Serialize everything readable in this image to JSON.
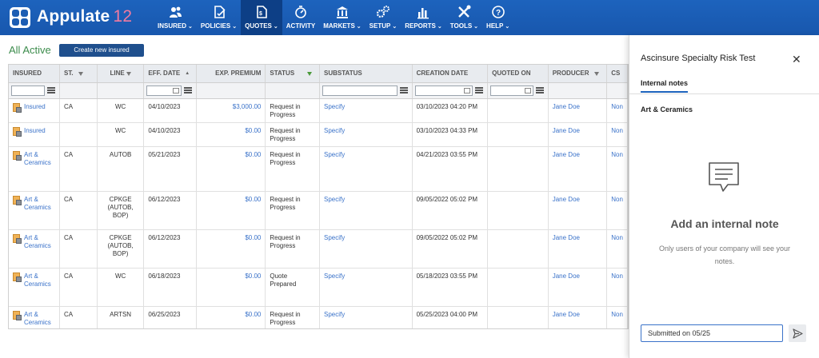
{
  "app": {
    "name": "Appulate",
    "version": "12"
  },
  "nav": [
    {
      "label": "INSURED",
      "icon": "users-icon",
      "dropdown": true,
      "active": false
    },
    {
      "label": "POLICIES",
      "icon": "policy-document-icon",
      "dropdown": true,
      "active": false
    },
    {
      "label": "QUOTES",
      "icon": "quote-document-icon",
      "dropdown": true,
      "active": true
    },
    {
      "label": "ACTIVITY",
      "icon": "activity-timer-icon",
      "dropdown": false,
      "active": false
    },
    {
      "label": "MARKETS",
      "icon": "bank-icon",
      "dropdown": true,
      "active": false
    },
    {
      "label": "SETUP",
      "icon": "gears-icon",
      "dropdown": true,
      "active": false
    },
    {
      "label": "REPORTS",
      "icon": "bar-chart-icon",
      "dropdown": true,
      "active": false
    },
    {
      "label": "TOOLS",
      "icon": "tools-icon",
      "dropdown": true,
      "active": false
    },
    {
      "label": "HELP",
      "icon": "help-icon",
      "dropdown": true,
      "active": false
    }
  ],
  "main": {
    "section_title": "All Active",
    "create_button": "Create new insured"
  },
  "table": {
    "columns": [
      "INSURED",
      "ST.",
      "LINE",
      "EFF. DATE",
      "EXP. PREMIUM",
      "STATUS",
      "SUBSTATUS",
      "CREATION DATE",
      "QUOTED ON",
      "PRODUCER",
      "CS"
    ],
    "rows": [
      {
        "insured": "Insured",
        "state": "CA",
        "line": "WC",
        "eff_date": "04/10/2023",
        "premium": "$3,000.00",
        "status": "Request in Progress",
        "substatus": "Specify",
        "created": "03/10/2023 04:20 PM",
        "quoted_on": "",
        "producer": "Jane Doe",
        "cs": "Non"
      },
      {
        "insured": "Insured",
        "state": "",
        "line": "WC",
        "eff_date": "04/10/2023",
        "premium": "$0.00",
        "status": "Request in Progress",
        "substatus": "Specify",
        "created": "03/10/2023 04:33 PM",
        "quoted_on": "",
        "producer": "Jane Doe",
        "cs": "Non"
      },
      {
        "insured": "Art & Ceramics",
        "state": "CA",
        "line": "AUTOB",
        "eff_date": "05/21/2023",
        "premium": "$0.00",
        "status": "Request in Progress",
        "substatus": "Specify",
        "created": "04/21/2023 03:55 PM",
        "quoted_on": "",
        "producer": "Jane Doe",
        "cs": "Non"
      },
      {
        "insured": "Art & Ceramics",
        "state": "CA",
        "line": "CPKGE (AUTOB, BOP)",
        "eff_date": "06/12/2023",
        "premium": "$0.00",
        "status": "Request in Progress",
        "substatus": "Specify",
        "created": "09/05/2022 05:02 PM",
        "quoted_on": "",
        "producer": "Jane Doe",
        "cs": "Non"
      },
      {
        "insured": "Art & Ceramics",
        "state": "CA",
        "line": "CPKGE (AUTOB, BOP)",
        "eff_date": "06/12/2023",
        "premium": "$0.00",
        "status": "Request in Progress",
        "substatus": "Specify",
        "created": "09/05/2022 05:02 PM",
        "quoted_on": "",
        "producer": "Jane Doe",
        "cs": "Non"
      },
      {
        "insured": "Art & Ceramics",
        "state": "CA",
        "line": "WC",
        "eff_date": "06/18/2023",
        "premium": "$0.00",
        "status": "Quote Prepared",
        "substatus": "Specify",
        "created": "05/18/2023 03:55 PM",
        "quoted_on": "",
        "producer": "Jane Doe",
        "cs": "Non"
      },
      {
        "insured": "Art & Ceramics",
        "state": "CA",
        "line": "ARTSN",
        "eff_date": "06/25/2023",
        "premium": "$0.00",
        "status": "Request in Progress",
        "substatus": "Specify",
        "created": "05/25/2023 04:00 PM",
        "quoted_on": "",
        "producer": "Jane Doe",
        "cs": "Non"
      }
    ]
  },
  "panel": {
    "title": "Ascinsure Specialty Risk Test",
    "close_symbol": "✕",
    "tab": "Internal notes",
    "insured_name": "Art & Ceramics",
    "empty_title": "Add an internal note",
    "empty_subtitle": "Only users of your company will see your notes.",
    "note_value": "Submitted on 05/25"
  }
}
